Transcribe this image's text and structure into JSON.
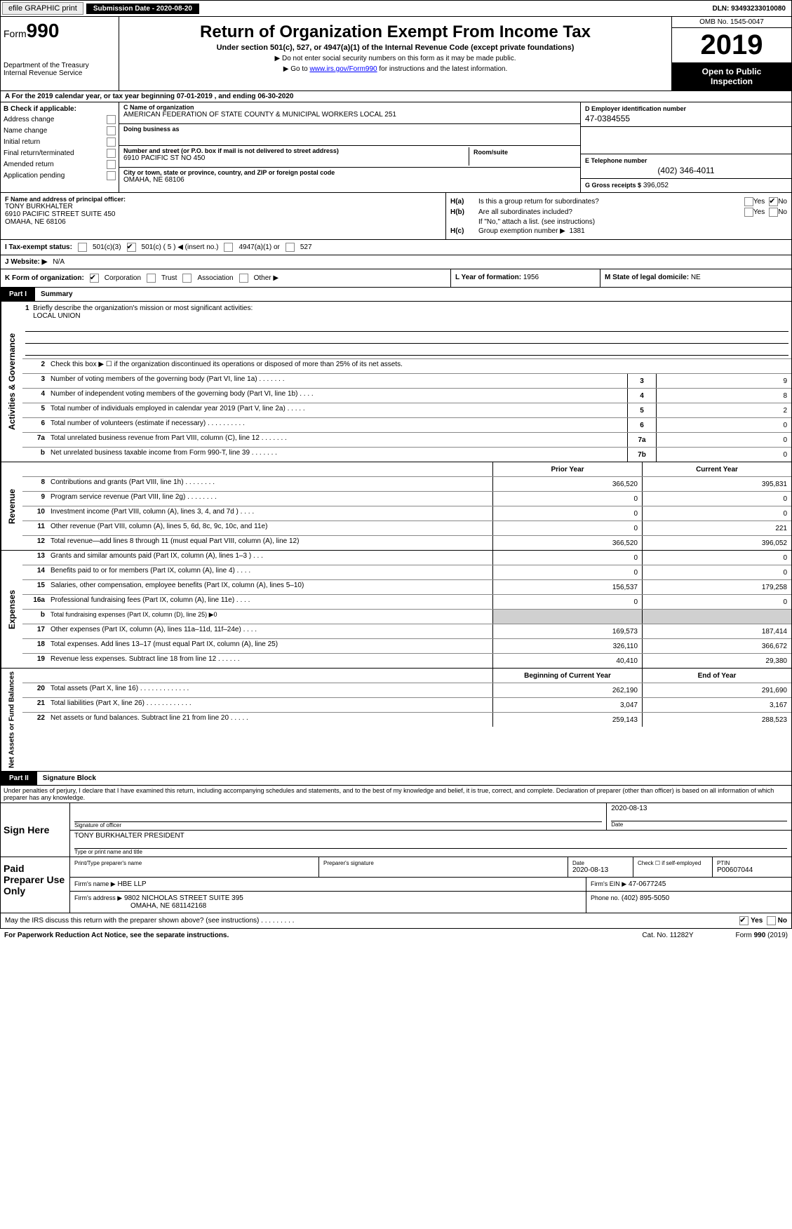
{
  "topbar": {
    "efile": "efile GRAPHIC print",
    "submission_label": "Submission Date - 2020-08-20",
    "dln": "DLN: 93493233010080"
  },
  "header": {
    "form_prefix": "Form",
    "form_number": "990",
    "dept1": "Department of the Treasury",
    "dept2": "Internal Revenue Service",
    "title": "Return of Organization Exempt From Income Tax",
    "subtitle": "Under section 501(c), 527, or 4947(a)(1) of the Internal Revenue Code (except private foundations)",
    "note1": "▶ Do not enter social security numbers on this form as it may be made public.",
    "note2_prefix": "▶ Go to ",
    "note2_link": "www.irs.gov/Form990",
    "note2_suffix": " for instructions and the latest information.",
    "omb": "OMB No. 1545-0047",
    "year": "2019",
    "inspect1": "Open to Public",
    "inspect2": "Inspection"
  },
  "row_a": "A  For the 2019 calendar year, or tax year beginning 07-01-2019       , and ending 06-30-2020",
  "col_b": {
    "header": "B Check if applicable:",
    "items": [
      "Address change",
      "Name change",
      "Initial return",
      "Final return/terminated",
      "Amended return",
      "Application pending"
    ]
  },
  "col_c": {
    "name_lbl": "C Name of organization",
    "name": "AMERICAN FEDERATION OF STATE COUNTY & MUNICIPAL WORKERS LOCAL 251",
    "dba_lbl": "Doing business as",
    "dba": "",
    "addr_lbl": "Number and street (or P.O. box if mail is not delivered to street address)",
    "addr": "6910 PACIFIC ST NO 450",
    "room_lbl": "Room/suite",
    "room": "",
    "city_lbl": "City or town, state or province, country, and ZIP or foreign postal code",
    "city": "OMAHA, NE  68106"
  },
  "col_d": {
    "ein_lbl": "D Employer identification number",
    "ein": "47-0384555",
    "phone_lbl": "E Telephone number",
    "phone": "(402) 346-4011",
    "gross_lbl": "G Gross receipts $",
    "gross": "396,052"
  },
  "f_block": {
    "lbl": "F Name and address of principal officer:",
    "name": "TONY BURKHALTER",
    "addr1": "6910 PACIFIC STREET SUITE 450",
    "addr2": "OMAHA, NE  68106"
  },
  "h_block": {
    "ha": "Is this a group return for subordinates?",
    "hb": "Are all subordinates included?",
    "hb_note": "If \"No,\" attach a list. (see instructions)",
    "hc": "Group exemption number ▶",
    "hc_val": "1381",
    "yes": "Yes",
    "no": "No"
  },
  "tax_status": {
    "lbl": "I   Tax-exempt status:",
    "opt1": "501(c)(3)",
    "opt2": "501(c) ( 5 ) ◀ (insert no.)",
    "opt3": "4947(a)(1) or",
    "opt4": "527"
  },
  "website": {
    "lbl": "J   Website: ▶",
    "val": "N/A"
  },
  "k_org": {
    "lbl": "K Form of organization:",
    "opts": [
      "Corporation",
      "Trust",
      "Association",
      "Other ▶"
    ]
  },
  "l_year": {
    "lbl": "L Year of formation:",
    "val": "1956"
  },
  "m_state": {
    "lbl": "M State of legal domicile:",
    "val": "NE"
  },
  "part1": {
    "lbl": "Part I",
    "title": "Summary"
  },
  "governance": {
    "tab": "Activities & Governance",
    "line1": "Briefly describe the organization's mission or most significant activities:",
    "line1_val": "LOCAL UNION",
    "line2": "Check this box ▶ ☐ if the organization discontinued its operations or disposed of more than 25% of its net assets.",
    "rows": [
      {
        "n": "3",
        "d": "Number of voting members of the governing body (Part VI, line 1a)  .     .     .     .     .     .     .",
        "box": "3",
        "v": "9"
      },
      {
        "n": "4",
        "d": "Number of independent voting members of the governing body (Part VI, line 1b)  .     .     .     .",
        "box": "4",
        "v": "8"
      },
      {
        "n": "5",
        "d": "Total number of individuals employed in calendar year 2019 (Part V, line 2a)  .     .     .     .     .",
        "box": "5",
        "v": "2"
      },
      {
        "n": "6",
        "d": "Total number of volunteers (estimate if necessary)  .     .     .     .     .     .     .     .     .     .",
        "box": "6",
        "v": "0"
      },
      {
        "n": "7a",
        "d": "Total unrelated business revenue from Part VIII, column (C), line 12  .     .     .     .     .     .     .",
        "box": "7a",
        "v": "0"
      },
      {
        "n": "b",
        "d": "Net unrelated business taxable income from Form 990-T, line 39  .     .     .     .     .     .     .",
        "box": "7b",
        "v": "0"
      }
    ]
  },
  "revenue": {
    "tab": "Revenue",
    "header_prior": "Prior Year",
    "header_curr": "Current Year",
    "rows": [
      {
        "n": "8",
        "d": "Contributions and grants (Part VIII, line 1h)  .     .     .     .     .     .     .     .",
        "p": "366,520",
        "c": "395,831"
      },
      {
        "n": "9",
        "d": "Program service revenue (Part VIII, line 2g)  .     .     .     .     .     .     .     .",
        "p": "0",
        "c": "0"
      },
      {
        "n": "10",
        "d": "Investment income (Part VIII, column (A), lines 3, 4, and 7d )  .     .     .     .",
        "p": "0",
        "c": "0"
      },
      {
        "n": "11",
        "d": "Other revenue (Part VIII, column (A), lines 5, 6d, 8c, 9c, 10c, and 11e)",
        "p": "0",
        "c": "221"
      },
      {
        "n": "12",
        "d": "Total revenue—add lines 8 through 11 (must equal Part VIII, column (A), line 12)",
        "p": "366,520",
        "c": "396,052"
      }
    ]
  },
  "expenses": {
    "tab": "Expenses",
    "rows": [
      {
        "n": "13",
        "d": "Grants and similar amounts paid (Part IX, column (A), lines 1–3 )  .     .     .",
        "p": "0",
        "c": "0"
      },
      {
        "n": "14",
        "d": "Benefits paid to or for members (Part IX, column (A), line 4)  .     .     .     .",
        "p": "0",
        "c": "0"
      },
      {
        "n": "15",
        "d": "Salaries, other compensation, employee benefits (Part IX, column (A), lines 5–10)",
        "p": "156,537",
        "c": "179,258"
      },
      {
        "n": "16a",
        "d": "Professional fundraising fees (Part IX, column (A), line 11e)  .     .     .     .",
        "p": "0",
        "c": "0"
      },
      {
        "n": "b",
        "d": "Total fundraising expenses (Part IX, column (D), line 25) ▶0",
        "p": "",
        "c": "",
        "shaded": true
      },
      {
        "n": "17",
        "d": "Other expenses (Part IX, column (A), lines 11a–11d, 11f–24e)  .     .     .     .",
        "p": "169,573",
        "c": "187,414"
      },
      {
        "n": "18",
        "d": "Total expenses. Add lines 13–17 (must equal Part IX, column (A), line 25)",
        "p": "326,110",
        "c": "366,672"
      },
      {
        "n": "19",
        "d": "Revenue less expenses. Subtract line 18 from line 12  .     .     .     .     .     .",
        "p": "40,410",
        "c": "29,380"
      }
    ]
  },
  "netassets": {
    "tab": "Net Assets or Fund Balances",
    "header_prior": "Beginning of Current Year",
    "header_curr": "End of Year",
    "rows": [
      {
        "n": "20",
        "d": "Total assets (Part X, line 16)  .     .     .     .     .     .     .     .     .     .     .     .     .",
        "p": "262,190",
        "c": "291,690"
      },
      {
        "n": "21",
        "d": "Total liabilities (Part X, line 26)  .     .     .     .     .     .     .     .     .     .     .     .",
        "p": "3,047",
        "c": "3,167"
      },
      {
        "n": "22",
        "d": "Net assets or fund balances. Subtract line 21 from line 20  .     .     .     .     .",
        "p": "259,143",
        "c": "288,523"
      }
    ]
  },
  "part2": {
    "lbl": "Part II",
    "title": "Signature Block"
  },
  "perjury": "Under penalties of perjury, I declare that I have examined this return, including accompanying schedules and statements, and to the best of my knowledge and belief, it is true, correct, and complete. Declaration of preparer (other than officer) is based on all information of which preparer has any knowledge.",
  "sign": {
    "here": "Sign Here",
    "sig_lbl": "Signature of officer",
    "date": "2020-08-13",
    "date_lbl": "Date",
    "name": "TONY BURKHALTER  PRESIDENT",
    "name_lbl": "Type or print name and title"
  },
  "paid": {
    "here": "Paid Preparer Use Only",
    "h1": "Print/Type preparer's name",
    "h2": "Preparer's signature",
    "h3": "Date",
    "h3v": "2020-08-13",
    "h4": "Check ☐ if self-employed",
    "h5": "PTIN",
    "h5v": "P00607044",
    "firm_name_lbl": "Firm's name    ▶",
    "firm_name": "HBE LLP",
    "firm_ein_lbl": "Firm's EIN ▶",
    "firm_ein": "47-0677245",
    "firm_addr_lbl": "Firm's address ▶",
    "firm_addr1": "9802 NICHOLAS STREET SUITE 395",
    "firm_addr2": "OMAHA, NE  681142168",
    "phone_lbl": "Phone no.",
    "phone": "(402) 895-5050"
  },
  "discuss": {
    "q": "May the IRS discuss this return with the preparer shown above? (see instructions)  .     .     .     .     .     .     .     .     .",
    "yes": "Yes",
    "no": "No"
  },
  "footer": {
    "left": "For Paperwork Reduction Act Notice, see the separate instructions.",
    "mid": "Cat. No. 11282Y",
    "right": "Form 990 (2019)"
  }
}
